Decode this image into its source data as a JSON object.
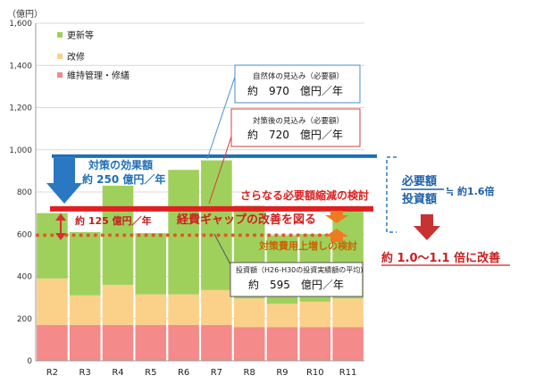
{
  "chart_data": {
    "type": "bar",
    "stacked": true,
    "unit_label": "（億円）",
    "categories": [
      "R2",
      "R3",
      "R4",
      "R5",
      "R6",
      "R7",
      "R8",
      "R9",
      "R10",
      "R11"
    ],
    "series": [
      {
        "name": "維持管理・修繕",
        "color": "#f48a8a",
        "values": [
          170,
          170,
          170,
          170,
          170,
          170,
          160,
          160,
          160,
          160
        ]
      },
      {
        "name": "改修",
        "color": "#fbd189",
        "values": [
          220,
          140,
          190,
          145,
          145,
          165,
          135,
          110,
          120,
          135
        ]
      },
      {
        "name": "更新等",
        "color": "#9fd05c",
        "values": [
          310,
          300,
          470,
          290,
          590,
          615,
          440,
          325,
          320,
          425
        ]
      }
    ],
    "ylim": [
      0,
      1600
    ],
    "yticks": [
      0,
      200,
      400,
      600,
      800,
      1000,
      1200,
      1400,
      1600
    ],
    "ytick_labels": [
      "0",
      "200",
      "400",
      "600",
      "800",
      "1,000",
      "1,200",
      "1,400",
      "1,600"
    ],
    "reference_lines": {
      "required": {
        "value": 970,
        "color": "#1f6fb5"
      },
      "after_measures": {
        "value": 720,
        "color": "#e02020"
      },
      "investment": {
        "value": 595,
        "color": "#e05a20"
      }
    },
    "annotations": {
      "box_required": {
        "title": "自然体の見込み（必要額）",
        "value_text": "約　970　億円／年"
      },
      "box_after": {
        "title": "対策後の見込み（必要額）",
        "value_text": "約　720　億円／年"
      },
      "box_invest": {
        "title": "投資額（H26-H30の投資実績額の平均）",
        "value_text": "約　595　億円／年"
      },
      "effect_text_1": "対策の効果額",
      "effect_text_2": "約 250 億円／年",
      "gap_text": "約 125 億円／年",
      "reduce_text": "さらなる必要額縮減の検討",
      "improve_text": "経費ギャップの改善を図る",
      "raise_text": "対策費用上増しの検討",
      "ratio_numerator": "必要額",
      "ratio_denominator": "投資額",
      "ratio_value": "≒ 約1.6倍",
      "result_text": "約 1.0〜1.1 倍に改善"
    }
  }
}
